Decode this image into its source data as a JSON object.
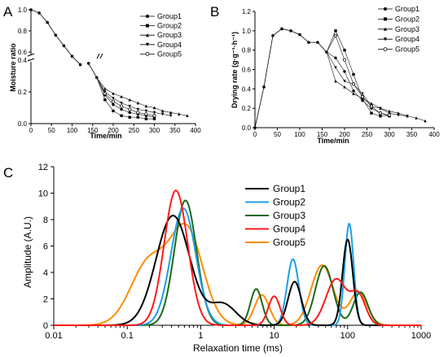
{
  "chart_data": [
    {
      "panel": "A",
      "type": "line",
      "xlabel": "Time/min",
      "ylabel": "Moisture ratio",
      "xlim": [
        0,
        400
      ],
      "x_ticks": [
        "0",
        "50",
        "100",
        "150",
        "200",
        "250",
        "300",
        "350",
        "400"
      ],
      "y_ticks": [
        "0.0",
        "0.2",
        "0.4",
        "0.6",
        "0.8",
        "1.0"
      ],
      "legend": [
        "Group1",
        "Group2",
        "Group3",
        "Group4",
        "Group5"
      ],
      "legend_position": "top-right",
      "shared_x": [
        0,
        20,
        40,
        60,
        80,
        100,
        120,
        140,
        160
      ],
      "shared_y": [
        1.0,
        0.97,
        0.88,
        0.76,
        0.66,
        0.56,
        0.48,
        0.38,
        0.29
      ],
      "series": [
        {
          "name": "Group1",
          "marker": "circle-filled",
          "x": [
            180,
            200,
            220,
            240,
            260,
            280,
            300
          ],
          "y": [
            0.18,
            0.12,
            0.09,
            0.07,
            0.06,
            0.05,
            0.04
          ]
        },
        {
          "name": "Group2",
          "marker": "square",
          "x": [
            180,
            200,
            220,
            240,
            260,
            280,
            300
          ],
          "y": [
            0.15,
            0.08,
            0.05,
            0.04,
            0.04,
            0.03,
            0.03
          ]
        },
        {
          "name": "Group3",
          "marker": "triangle-up",
          "x": [
            180,
            200,
            220,
            240,
            260,
            280,
            300,
            320,
            340,
            360,
            380
          ],
          "y": [
            0.22,
            0.19,
            0.17,
            0.15,
            0.13,
            0.11,
            0.1,
            0.08,
            0.07,
            0.06,
            0.05
          ]
        },
        {
          "name": "Group4",
          "marker": "triangle-down",
          "x": [
            180,
            200,
            220,
            240,
            260,
            280,
            300,
            320,
            340
          ],
          "y": [
            0.2,
            0.16,
            0.13,
            0.11,
            0.09,
            0.08,
            0.07,
            0.06,
            0.05
          ]
        },
        {
          "name": "Group5",
          "marker": "circle-open",
          "x": [
            180,
            200,
            220,
            240,
            260,
            280,
            300
          ],
          "y": [
            0.19,
            0.14,
            0.11,
            0.09,
            0.07,
            0.06,
            0.05
          ]
        }
      ]
    },
    {
      "panel": "B",
      "type": "line",
      "xlabel": "Time/min",
      "ylabel": "Drying rate (g·g⁻¹·h⁻¹)",
      "xlim": [
        0,
        400
      ],
      "ylim": [
        0,
        1.2
      ],
      "x_ticks": [
        "0",
        "50",
        "100",
        "150",
        "200",
        "250",
        "300",
        "350",
        "400"
      ],
      "y_ticks": [
        "0.0",
        "0.2",
        "0.4",
        "0.6",
        "0.8",
        "1.0",
        "1.2"
      ],
      "legend": [
        "Group1",
        "Group2",
        "Group3",
        "Group4",
        "Group5"
      ],
      "legend_position": "top-right",
      "shared_x": [
        0,
        20,
        40,
        60,
        80,
        100,
        120,
        140,
        160
      ],
      "shared_y": [
        0,
        0.42,
        0.95,
        1.02,
        1.0,
        0.96,
        0.88,
        0.88,
        0.78
      ],
      "series": [
        {
          "name": "Group1",
          "marker": "circle-filled",
          "x": [
            160,
            180,
            200,
            220,
            240,
            260,
            280,
            300
          ],
          "y": [
            0.78,
            0.72,
            0.58,
            0.38,
            0.28,
            0.2,
            0.15,
            0.12
          ]
        },
        {
          "name": "Group2",
          "marker": "square",
          "x": [
            160,
            180,
            200,
            220,
            240,
            260,
            280,
            300
          ],
          "y": [
            0.78,
            1.0,
            0.8,
            0.55,
            0.3,
            0.15,
            0.12,
            0.12
          ]
        },
        {
          "name": "Group3",
          "marker": "triangle-up",
          "x": [
            160,
            180,
            200,
            220,
            240,
            260,
            280,
            300,
            320,
            340,
            360,
            380
          ],
          "y": [
            0.78,
            0.48,
            0.42,
            0.35,
            0.3,
            0.25,
            0.2,
            0.17,
            0.15,
            0.12,
            0.1,
            0.07
          ]
        },
        {
          "name": "Group4",
          "marker": "triangle-down",
          "x": [
            160,
            180,
            200,
            220,
            240,
            260,
            280,
            300,
            320,
            340
          ],
          "y": [
            0.78,
            0.62,
            0.48,
            0.45,
            0.35,
            0.22,
            0.2,
            0.15,
            0.13,
            0.12
          ]
        },
        {
          "name": "Group5",
          "marker": "circle-open",
          "x": [
            160,
            180,
            200,
            220,
            240,
            260,
            280,
            300
          ],
          "y": [
            0.78,
            0.95,
            0.7,
            0.45,
            0.32,
            0.22,
            0.15,
            0.13
          ]
        }
      ]
    },
    {
      "panel": "C",
      "type": "line",
      "xlabel": "Relaxation time (ms)",
      "ylabel": "Amplitude (A.U.)",
      "x_scale": "log",
      "xlim": [
        0.01,
        1000
      ],
      "ylim": [
        0,
        12
      ],
      "x_ticks": [
        "0.01",
        "0.1",
        "1",
        "10",
        "100",
        "1000"
      ],
      "y_ticks": [
        "0",
        "2",
        "4",
        "6",
        "8",
        "10",
        "12"
      ],
      "legend": [
        "Group1",
        "Group2",
        "Group3",
        "Group4",
        "Group5"
      ],
      "legend_position": "top-right",
      "series": [
        {
          "name": "Group1",
          "color": "#000000",
          "peaks": [
            {
              "center": 0.42,
              "height": 8.3,
              "width": 0.23
            },
            {
              "center": 2.0,
              "height": 1.6,
              "width": 0.18
            },
            {
              "center": 19,
              "height": 3.3,
              "width": 0.09
            },
            {
              "center": 100,
              "height": 6.5,
              "width": 0.07
            }
          ]
        },
        {
          "name": "Group2",
          "color": "#1ea0e6",
          "peaks": [
            {
              "center": 0.58,
              "height": 8.85,
              "width": 0.17
            },
            {
              "center": 18,
              "height": 5.0,
              "width": 0.08
            },
            {
              "center": 105,
              "height": 7.7,
              "width": 0.06
            }
          ]
        },
        {
          "name": "Group3",
          "color": "#1a6b1a",
          "peaks": [
            {
              "center": 0.62,
              "height": 9.45,
              "width": 0.15
            },
            {
              "center": 5.7,
              "height": 2.75,
              "width": 0.08
            },
            {
              "center": 48,
              "height": 4.5,
              "width": 0.12
            },
            {
              "center": 150,
              "height": 2.5,
              "width": 0.1
            }
          ]
        },
        {
          "name": "Group4",
          "color": "#ff1a1a",
          "peaks": [
            {
              "center": 0.46,
              "height": 10.2,
              "width": 0.16
            },
            {
              "center": 10,
              "height": 2.2,
              "width": 0.08
            },
            {
              "center": 70,
              "height": 3.5,
              "width": 0.14
            },
            {
              "center": 140,
              "height": 2.2,
              "width": 0.1
            }
          ]
        },
        {
          "name": "Group5",
          "color": "#ff8c00",
          "peaks": [
            {
              "center": 0.2,
              "height": 4.8,
              "width": 0.25
            },
            {
              "center": 0.65,
              "height": 7.0,
              "width": 0.22
            },
            {
              "center": 6.8,
              "height": 2.3,
              "width": 0.1
            },
            {
              "center": 45,
              "height": 4.55,
              "width": 0.15
            },
            {
              "center": 140,
              "height": 2.5,
              "width": 0.12
            }
          ]
        }
      ]
    }
  ]
}
